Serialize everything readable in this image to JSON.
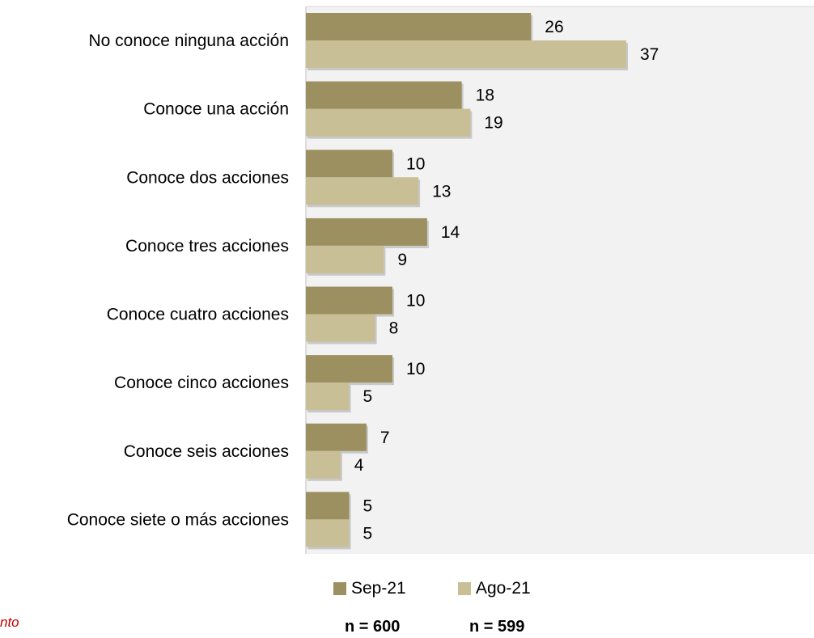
{
  "chart_data": {
    "type": "bar",
    "orientation": "horizontal",
    "categories": [
      "No conoce ninguna acción",
      "Conoce una acción",
      "Conoce dos acciones",
      "Conoce tres acciones",
      "Conoce cuatro acciones",
      "Conoce cinco acciones",
      "Conoce seis acciones",
      "Conoce siete o más acciones"
    ],
    "series": [
      {
        "name": "Sep-21",
        "color": "#9c9060",
        "values": [
          26,
          18,
          10,
          14,
          10,
          10,
          7,
          5
        ]
      },
      {
        "name": "Ago-21",
        "color": "#c8bf96",
        "values": [
          37,
          19,
          13,
          9,
          8,
          5,
          4,
          5
        ]
      }
    ],
    "xlim": [
      0,
      58
    ],
    "grid": false,
    "legend_position": "bottom",
    "plot_background": "#f2f2f2"
  },
  "legend": {
    "sep_label": "Sep-21",
    "ago_label": "Ago-21"
  },
  "sample_sizes": {
    "sep": "n = 600",
    "ago": "n = 599"
  },
  "note": "nto"
}
